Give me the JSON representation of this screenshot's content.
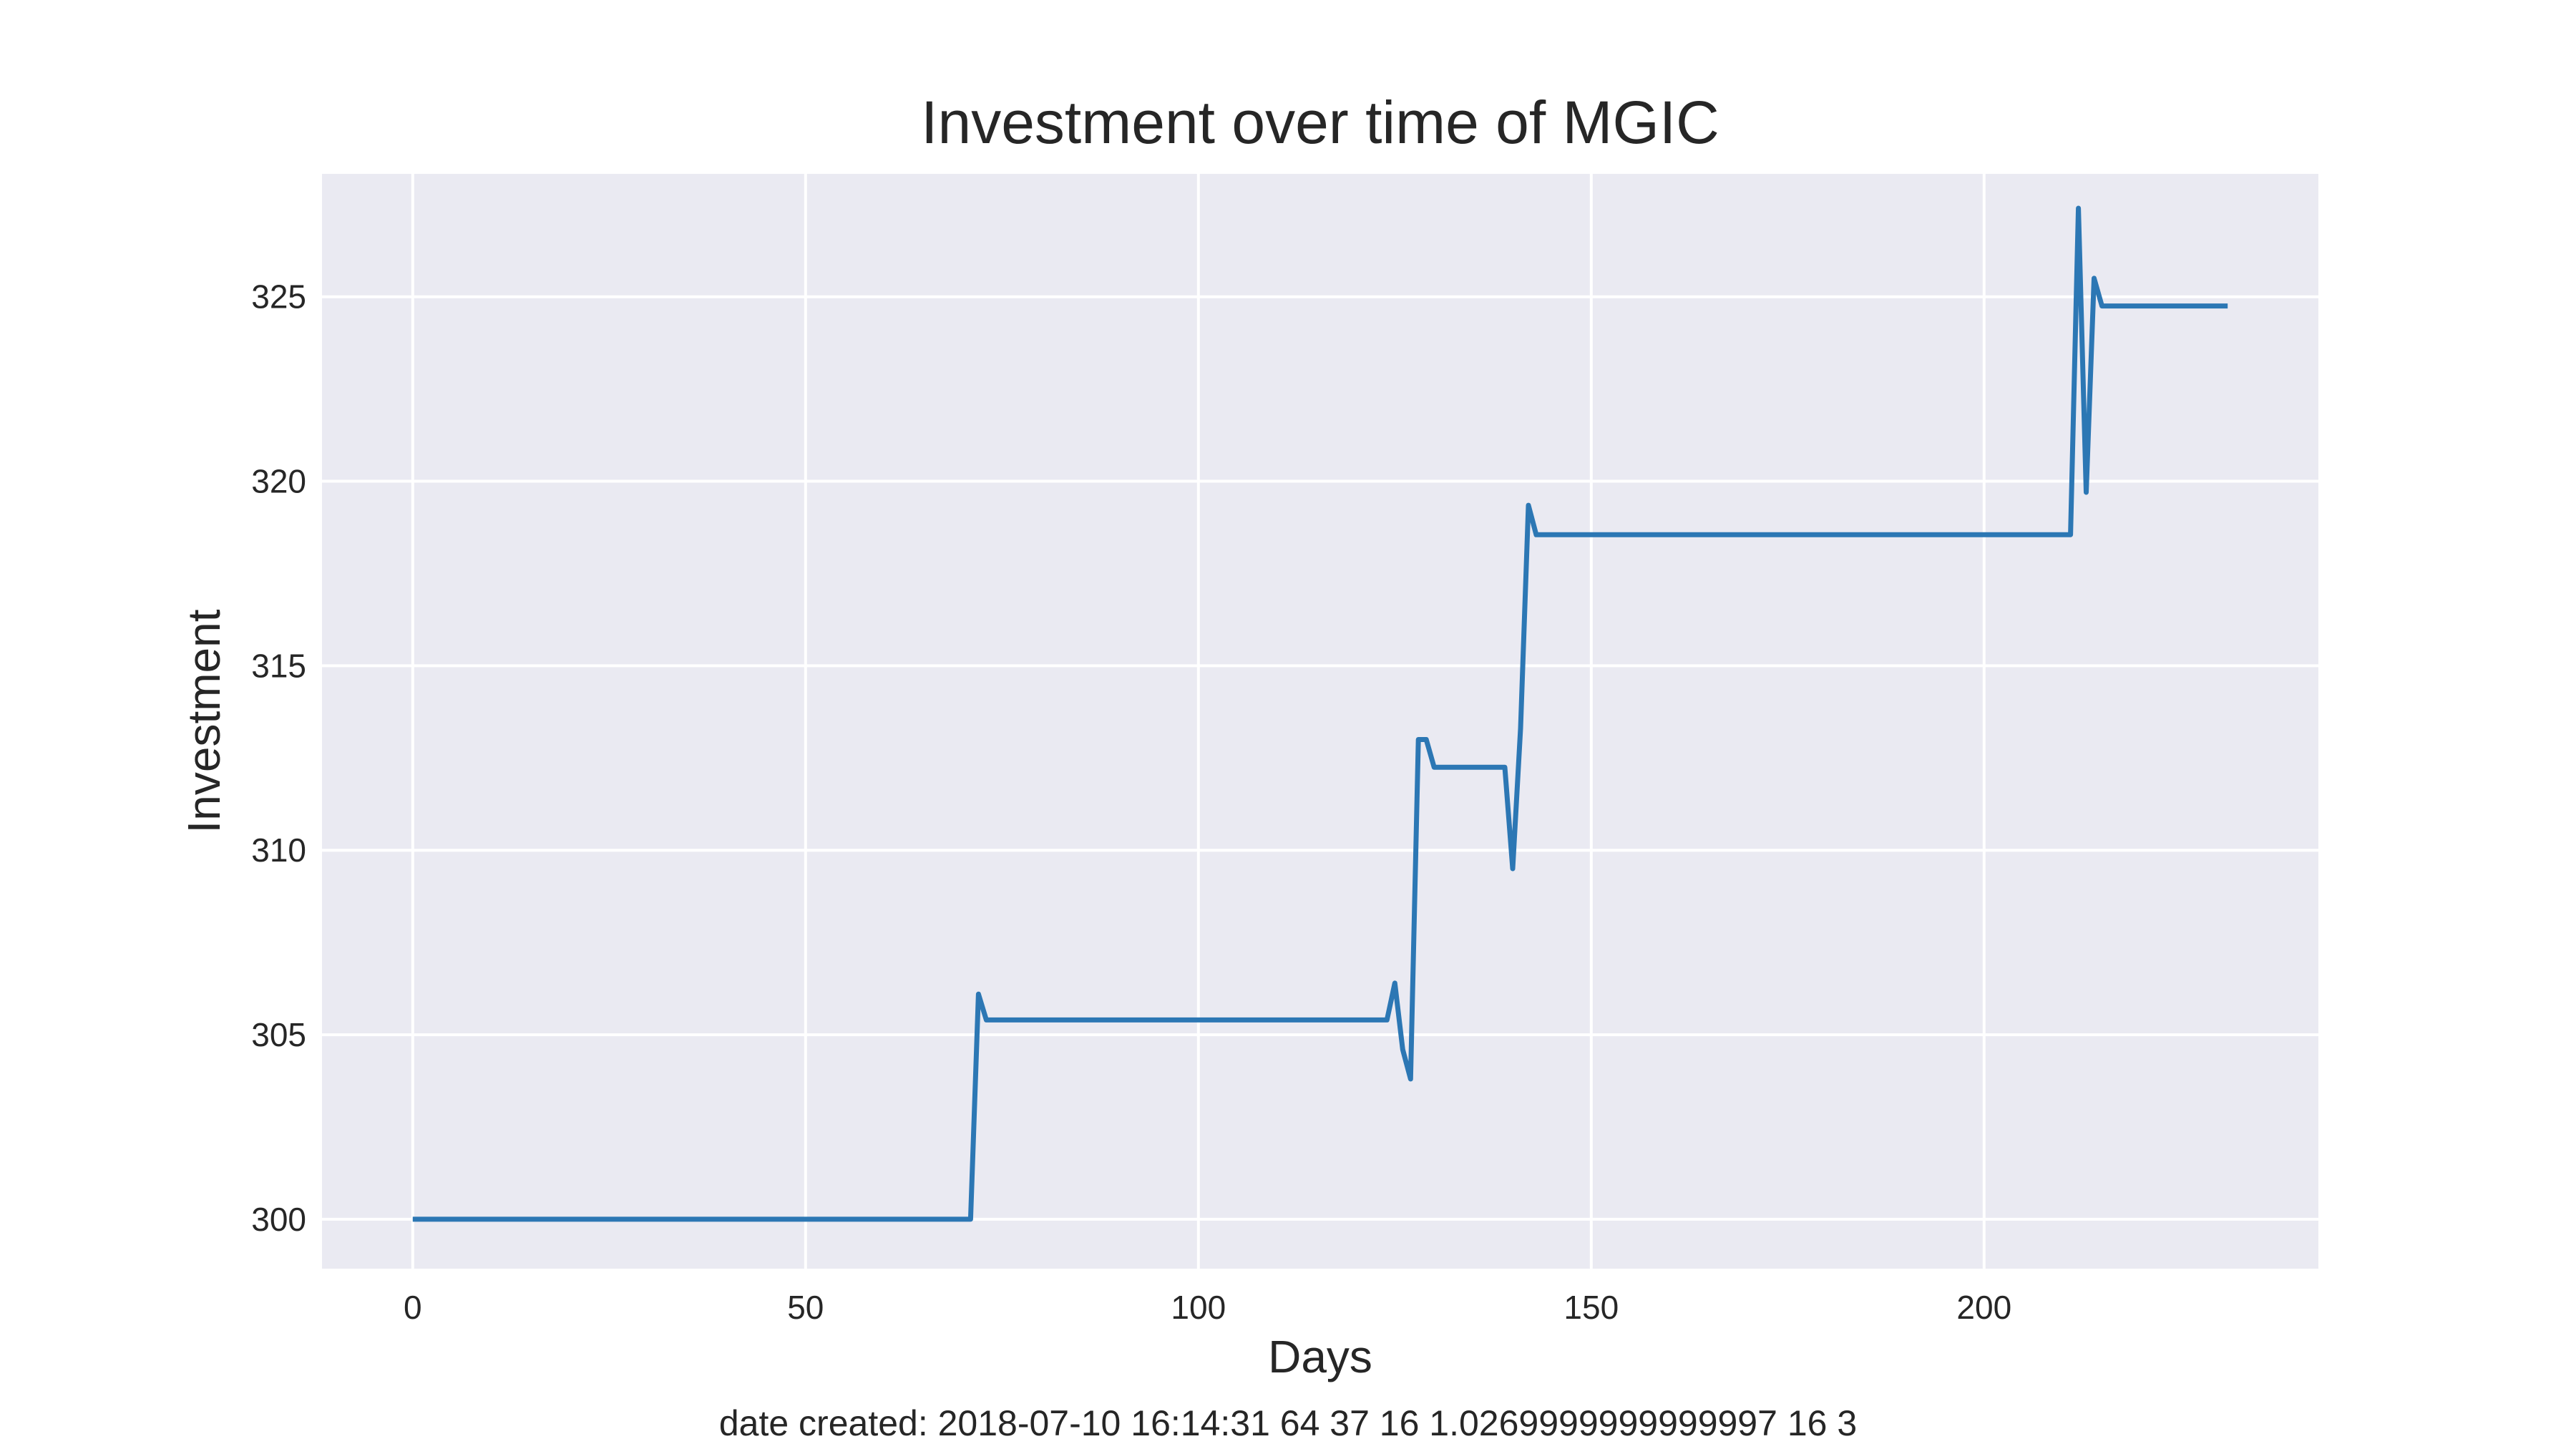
{
  "chart_data": {
    "type": "line",
    "title": "Investment over time of MGIC",
    "xlabel": "Days",
    "ylabel": "Investment",
    "xlim": [
      -11.55,
      242.55
    ],
    "ylim": [
      298.66,
      328.33
    ],
    "xticks": [
      0,
      50,
      100,
      150,
      200
    ],
    "yticks": [
      300,
      305,
      310,
      315,
      320,
      325
    ],
    "grid": true,
    "legend": "none",
    "colors": {
      "background": "#EAEAF2",
      "grid": "#FFFFFF",
      "line": "#2C77B4"
    },
    "series": [
      {
        "x": [
          0,
          71,
          72,
          73,
          124,
          125,
          126,
          127,
          128,
          129,
          130,
          139,
          140,
          141,
          142,
          143,
          211,
          212,
          213,
          214,
          215,
          231
        ],
        "values": [
          300,
          300,
          306.1,
          305.4,
          305.4,
          306.4,
          304.6,
          303.8,
          313.0,
          313.0,
          312.25,
          312.25,
          309.5,
          313.3,
          319.35,
          318.55,
          318.55,
          327.4,
          319.7,
          325.5,
          324.75,
          324.75
        ]
      }
    ],
    "footer": "date created: 2018-07-10 16:14:31 64 37 16 1.0269999999999997 16 3"
  }
}
